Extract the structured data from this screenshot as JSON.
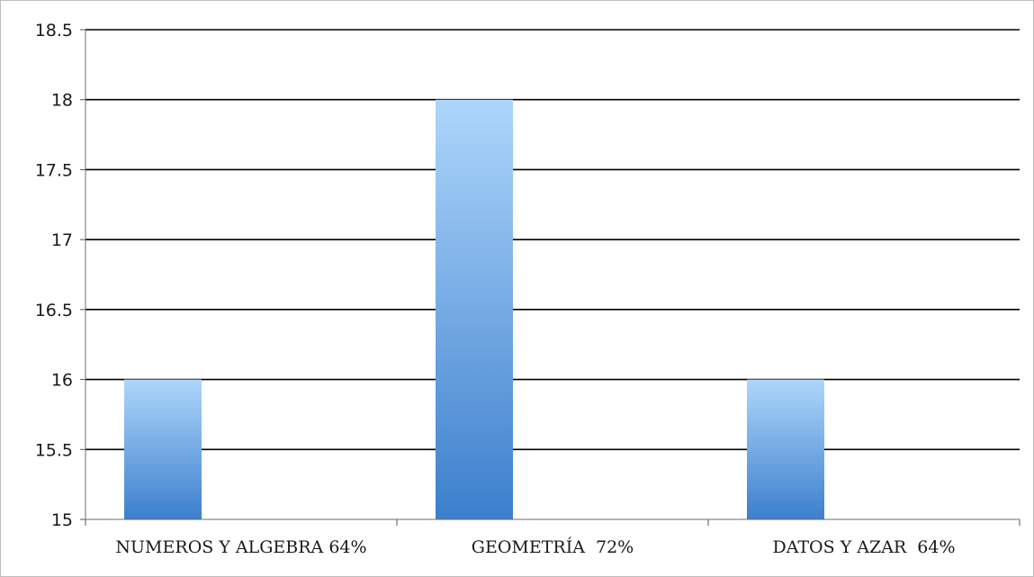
{
  "chart_data": {
    "type": "bar",
    "categories": [
      "NUMEROS Y ALGEBRA 64%",
      "GEOMETRÍA  72%",
      "DATOS Y AZAR  64%"
    ],
    "values": [
      16,
      18,
      16
    ],
    "title": "",
    "xlabel": "",
    "ylabel": "",
    "ylim": [
      15,
      18.5
    ],
    "yticks": [
      "15",
      "15.5",
      "16",
      "16.5",
      "17",
      "17.5",
      "18",
      "18.5"
    ],
    "grid": true,
    "legend": "none",
    "colors": {
      "bar_top": "#aed6fb",
      "bar_bottom": "#3c7fcd",
      "grid": "#000000"
    }
  }
}
